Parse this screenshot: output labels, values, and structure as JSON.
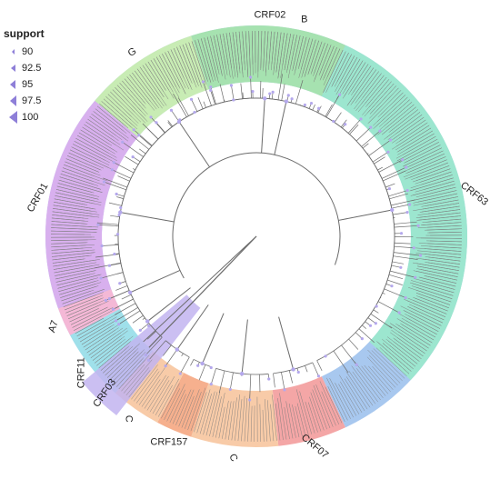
{
  "legend": {
    "title": "support",
    "items": [
      {
        "label": "90",
        "size": 3
      },
      {
        "label": "92.5",
        "size": 4
      },
      {
        "label": "95",
        "size": 5
      },
      {
        "label": "97.5",
        "size": 6
      },
      {
        "label": "100",
        "size": 7
      }
    ],
    "symbol_color": "#8e7fd8"
  },
  "clades": [
    {
      "label": "B",
      "start": 140,
      "end": 425,
      "color": "#a8c8ef"
    },
    {
      "label": "CRF07",
      "start": 425,
      "end": 444,
      "color": "#f4a6a6"
    },
    {
      "label": "C",
      "start": 444,
      "end": 468,
      "color": "#f8cba8"
    },
    {
      "label": "CRF157",
      "start": 468,
      "end": 478,
      "color": "#f6b08e"
    },
    {
      "label": "C",
      "start": 478,
      "end": 492,
      "color": "#f8cba8"
    },
    {
      "label": "CRF11",
      "start": 492,
      "end": 512,
      "color": "#9fe0ea"
    },
    {
      "label": "A7",
      "start": 512,
      "end": 520,
      "color": "#f4b8d6"
    },
    {
      "label": "CRF01",
      "start": 520,
      "end": 580,
      "color": "#d8b0ee"
    },
    {
      "label": "G",
      "start": 580,
      "end": 612,
      "color": "#c8ecb4"
    },
    {
      "label": "CRF02",
      "start": 612,
      "end": 655,
      "color": "#a6e2b0"
    },
    {
      "label": "CRF63",
      "start": 655,
      "end": 763,
      "color": "#9ce6cf"
    },
    {
      "label": "CRF03",
      "start": 128,
      "end": 140,
      "color": "#c2b4f0"
    }
  ],
  "colors": {
    "branch": "#6a6a6a",
    "node": "#b4a8ec",
    "tip_line": "#7a7a7a"
  }
}
